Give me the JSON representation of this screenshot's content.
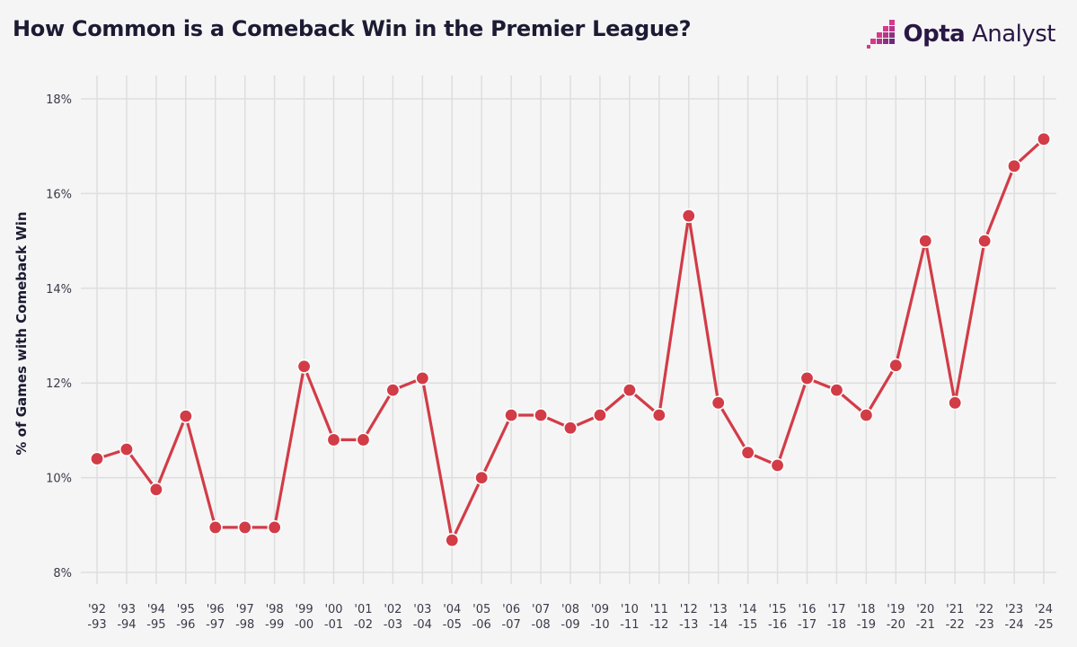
{
  "header": {
    "title": "How Common is a Comeback Win in the Premier League?",
    "brand_strong": "Opta",
    "brand_light": "Analyst"
  },
  "colors": {
    "line": "#d23c47",
    "grid": "#dedede",
    "brand_pink": "#d63a8c",
    "brand_purple": "#6b2a7d"
  },
  "chart_data": {
    "type": "line",
    "title": "How Common is a Comeback Win in the Premier League?",
    "xlabel": "",
    "ylabel": "% of Games with Comeback Win",
    "ylim": [
      8,
      18
    ],
    "yticks": [
      8,
      10,
      12,
      14,
      16,
      18
    ],
    "ytick_labels": [
      "8%",
      "10%",
      "12%",
      "14%",
      "16%",
      "18%"
    ],
    "grid": true,
    "categories": [
      [
        "'92",
        "-93"
      ],
      [
        "'93",
        "-94"
      ],
      [
        "'94",
        "-95"
      ],
      [
        "'95",
        "-96"
      ],
      [
        "'96",
        "-97"
      ],
      [
        "'97",
        "-98"
      ],
      [
        "'98",
        "-99"
      ],
      [
        "'99",
        "-00"
      ],
      [
        "'00",
        "-01"
      ],
      [
        "'01",
        "-02"
      ],
      [
        "'02",
        "-03"
      ],
      [
        "'03",
        "-04"
      ],
      [
        "'04",
        "-05"
      ],
      [
        "'05",
        "-06"
      ],
      [
        "'06",
        "-07"
      ],
      [
        "'07",
        "-08"
      ],
      [
        "'08",
        "-09"
      ],
      [
        "'09",
        "-10"
      ],
      [
        "'10",
        "-11"
      ],
      [
        "'11",
        "-12"
      ],
      [
        "'12",
        "-13"
      ],
      [
        "'13",
        "-14"
      ],
      [
        "'14",
        "-15"
      ],
      [
        "'15",
        "-16"
      ],
      [
        "'16",
        "-17"
      ],
      [
        "'17",
        "-18"
      ],
      [
        "'18",
        "-19"
      ],
      [
        "'19",
        "-20"
      ],
      [
        "'20",
        "-21"
      ],
      [
        "'21",
        "-22"
      ],
      [
        "'22",
        "-23"
      ],
      [
        "'23",
        "-24"
      ],
      [
        "'24",
        "-25"
      ]
    ],
    "series": [
      {
        "name": "% of Games with Comeback Win",
        "values": [
          10.4,
          10.6,
          9.75,
          11.3,
          8.95,
          8.95,
          8.95,
          12.35,
          10.8,
          10.8,
          11.85,
          12.1,
          8.68,
          10.0,
          11.32,
          11.32,
          11.05,
          11.32,
          11.85,
          11.32,
          15.53,
          11.58,
          10.53,
          10.26,
          12.1,
          11.85,
          11.32,
          12.37,
          15.0,
          11.58,
          15.0,
          16.58,
          17.15
        ]
      }
    ]
  }
}
